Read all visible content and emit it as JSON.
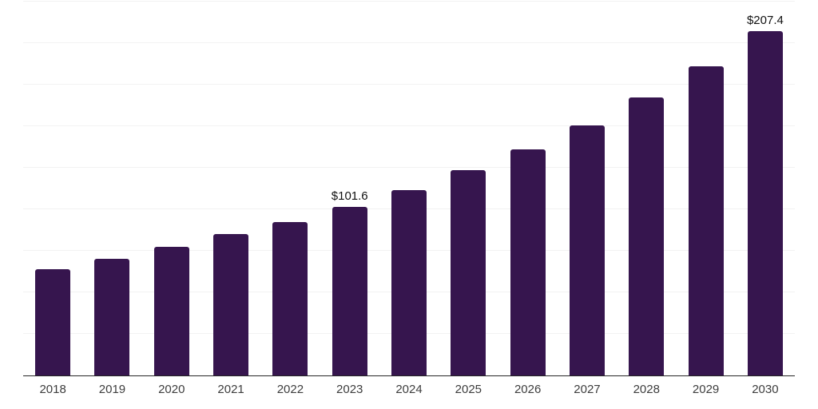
{
  "chart_data": {
    "type": "bar",
    "title": "",
    "xlabel": "",
    "ylabel": "",
    "categories": [
      "2018",
      "2019",
      "2020",
      "2021",
      "2022",
      "2023",
      "2024",
      "2025",
      "2026",
      "2027",
      "2028",
      "2029",
      "2030"
    ],
    "values": [
      64.1,
      70.3,
      77.4,
      85.0,
      92.4,
      101.6,
      111.7,
      123.7,
      136.0,
      150.4,
      167.5,
      186.2,
      207.4
    ],
    "bar_labels": [
      "",
      "",
      "",
      "",
      "",
      "$101.6",
      "",
      "",
      "",
      "",
      "",
      "",
      "$207.4"
    ],
    "ylim": [
      0,
      225
    ],
    "gridline_interval": 25,
    "grid": "horizontal-only",
    "y_tick_labels_visible": false,
    "legend_position": "none",
    "bar_color": "#36154e",
    "gridline_color": "#f2f2f2",
    "axis_line_color": "#262626",
    "tick_label_color": "#3d3d3d",
    "value_label_color": "#111111",
    "background_color": "#ffffff"
  }
}
